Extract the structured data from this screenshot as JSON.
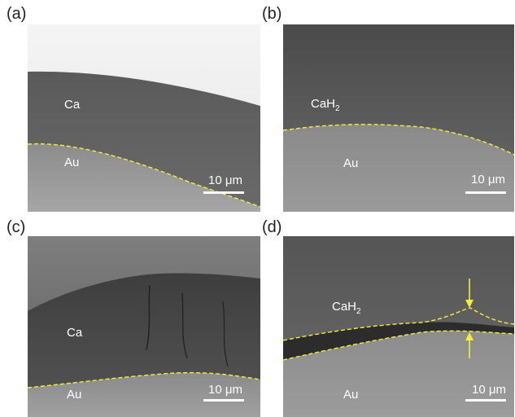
{
  "panels": [
    {
      "label": "(a)",
      "top_layer": "Ca",
      "bottom_layer": "Au",
      "scale": "10 μm"
    },
    {
      "label": "(b)",
      "top_layer": "CaH",
      "top_layer_sub": "2",
      "bottom_layer": "Au",
      "scale": "10 μm"
    },
    {
      "label": "(c)",
      "top_layer": "Ca",
      "bottom_layer": "Au",
      "scale": "10 μm"
    },
    {
      "label": "(d)",
      "top_layer": "CaH",
      "top_layer_sub": "2",
      "bottom_layer": "Au",
      "scale": "10 μm"
    }
  ],
  "colors": {
    "boundary_dash": "#f2ef3a",
    "arrow": "#f2ef3a",
    "text": "#ffffff"
  }
}
